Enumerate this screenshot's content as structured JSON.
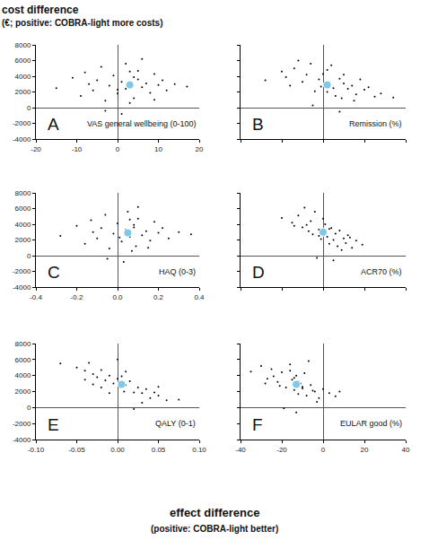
{
  "chart_data": {
    "type": "scatter",
    "ylabel": [
      "cost difference",
      "(€; positive: COBRA-light more costs)"
    ],
    "xlabel": [
      "effect difference",
      "(positive: COBRA-light better)"
    ],
    "panels": [
      {
        "title": "A",
        "xlabel": "VAS general wellbeing (0-100)",
        "xlim": [
          -20,
          20
        ],
        "xticks": [
          -20,
          -10,
          0,
          10,
          20
        ],
        "ylim": [
          -4000,
          8000
        ],
        "yticks": [
          -4000,
          -2000,
          0,
          2000,
          4000,
          6000,
          8000
        ],
        "series": [
          {
            "color": "#000000",
            "marker": "dot",
            "x": [
              -15,
              -11,
              -9,
              -8,
              -6,
              -5,
              -4,
              -3,
              -2,
              -1,
              0,
              1,
              2,
              2,
              3,
              4,
              4,
              5,
              6,
              7,
              8,
              9,
              10,
              11,
              12,
              14,
              17,
              -3,
              6,
              1,
              -7,
              9,
              3,
              0,
              5
            ],
            "values": [
              2500,
              3800,
              1500,
              4500,
              2200,
              3500,
              5200,
              900,
              2800,
              4100,
              1800,
              3300,
              5600,
              2400,
              600,
              3900,
              1200,
              4700,
              2600,
              3100,
              1900,
              4300,
              2900,
              3500,
              2200,
              3000,
              2700,
              -400,
              6200,
              -800,
              3000,
              1000,
              4600,
              2300,
              3600
            ]
          },
          {
            "color": "#7ec8e8",
            "marker": "circle",
            "x": [
              3
            ],
            "values": [
              2900
            ]
          }
        ]
      },
      {
        "title": "B",
        "xlabel": "Remission (%)",
        "tick_labels": false,
        "xlim": [
          -40,
          40
        ],
        "xticks": [
          -40,
          -20,
          0,
          20,
          40
        ],
        "ylim": [
          -4000,
          8000
        ],
        "yticks": [
          -4000,
          -2000,
          0,
          2000,
          4000,
          6000,
          8000
        ],
        "series": [
          {
            "color": "#000000",
            "marker": "dot",
            "x": [
              -28,
              -20,
              -16,
              -14,
              -10,
              -8,
              -6,
              -4,
              -2,
              0,
              2,
              3,
              4,
              5,
              6,
              8,
              9,
              10,
              12,
              14,
              16,
              18,
              20,
              22,
              25,
              28,
              34,
              -5,
              -12,
              8,
              -18,
              15,
              2,
              -1,
              10
            ],
            "values": [
              3500,
              4600,
              2800,
              5000,
              3300,
              4200,
              5600,
              2100,
              3600,
              4300,
              2000,
              3200,
              5400,
              2500,
              1500,
              3700,
              1200,
              4200,
              2400,
              2800,
              1700,
              3600,
              2300,
              2600,
              1400,
              1800,
              1300,
              300,
              6000,
              -500,
              3900,
              900,
              4800,
              2700,
              3100
            ]
          },
          {
            "color": "#7ec8e8",
            "marker": "circle",
            "x": [
              2
            ],
            "values": [
              2900
            ]
          }
        ]
      },
      {
        "title": "C",
        "xlabel": "HAQ (0-3)",
        "xlim": [
          -0.4,
          0.4
        ],
        "xticks": [
          -0.4,
          -0.2,
          {
            "value": 0,
            "label": "0.0"
          },
          0.2,
          0.4
        ],
        "ylim": [
          -4000,
          8000
        ],
        "yticks": [
          -4000,
          -2000,
          0,
          2000,
          4000,
          6000,
          8000
        ],
        "series": [
          {
            "color": "#000000",
            "marker": "dot",
            "x": [
              -0.28,
              -0.2,
              -0.16,
              -0.13,
              -0.1,
              -0.08,
              -0.06,
              -0.04,
              -0.02,
              0,
              0.02,
              0.04,
              0.05,
              0.06,
              0.07,
              0.08,
              0.09,
              0.1,
              0.12,
              0.14,
              0.16,
              0.18,
              0.2,
              0.22,
              0.25,
              0.3,
              0.36,
              -0.05,
              0.1,
              0.03,
              -0.12,
              0.15,
              0.06,
              0.01,
              0.08
            ],
            "values": [
              2500,
              3800,
              1500,
              4500,
              2200,
              3500,
              5200,
              900,
              2800,
              4100,
              1800,
              3300,
              5600,
              2400,
              600,
              3900,
              1200,
              4700,
              2600,
              3100,
              1900,
              4300,
              2900,
              3500,
              2200,
              3000,
              2700,
              -400,
              6200,
              -800,
              3000,
              1000,
              4600,
              2300,
              3600
            ]
          },
          {
            "color": "#7ec8e8",
            "marker": "circle",
            "x": [
              0.05
            ],
            "values": [
              2900
            ]
          }
        ]
      },
      {
        "title": "D",
        "xlabel": "ACR70 (%)",
        "tick_labels": false,
        "xlim": [
          -40,
          40
        ],
        "xticks": [
          -40,
          -20,
          0,
          20,
          40
        ],
        "ylim": [
          -4000,
          8000
        ],
        "yticks": [
          -4000,
          -2000,
          0,
          2000,
          4000,
          6000,
          8000
        ],
        "series": [
          {
            "color": "#000000",
            "marker": "dot",
            "x": [
              -20,
              -15,
              -12,
              -10,
              -8,
              -6,
              -5,
              -4,
              -2,
              -1,
              0,
              1,
              2,
              3,
              4,
              5,
              6,
              7,
              8,
              10,
              11,
              12,
              14,
              16,
              19,
              -3,
              -9,
              5,
              -14,
              9,
              0,
              -2,
              3,
              13,
              -7
            ],
            "values": [
              4800,
              4200,
              5100,
              3600,
              3900,
              4400,
              2700,
              5600,
              3300,
              2100,
              3000,
              4000,
              2400,
              1500,
              3500,
              2000,
              2800,
              1200,
              3200,
              2200,
              1600,
              2600,
              1000,
              1900,
              1400,
              -300,
              6100,
              -600,
              3800,
              700,
              4700,
              2500,
              3400,
              2300,
              3100
            ]
          },
          {
            "color": "#7ec8e8",
            "marker": "circle",
            "x": [
              0
            ],
            "values": [
              3000
            ]
          }
        ]
      },
      {
        "title": "E",
        "xlabel": "QALY (0-1)",
        "xlim": [
          -0.1,
          0.1
        ],
        "xticks": [
          {
            "value": -0.1,
            "label": "-0.10"
          },
          -0.05,
          {
            "value": 0,
            "label": "0.00"
          },
          0.05,
          {
            "value": 0.1,
            "label": "0.10"
          }
        ],
        "ylim": [
          -4000,
          8000
        ],
        "yticks": [
          -4000,
          -2000,
          0,
          2000,
          4000,
          6000,
          8000
        ],
        "series": [
          {
            "color": "#000000",
            "marker": "dot",
            "x": [
              -0.07,
              -0.05,
              -0.04,
              -0.035,
              -0.03,
              -0.025,
              -0.02,
              -0.015,
              -0.01,
              -0.005,
              0,
              0.003,
              0.005,
              0.008,
              0.01,
              0.015,
              0.02,
              0.025,
              0.03,
              0.035,
              0.04,
              0.045,
              0.05,
              0.06,
              0.075,
              -0.02,
              0,
              0.02,
              -0.04,
              0.03,
              0.01,
              -0.01,
              0.005,
              0.05,
              -0.03
            ],
            "values": [
              5500,
              5000,
              4600,
              5600,
              4200,
              3800,
              4700,
              3400,
              4000,
              3000,
              3600,
              2500,
              3100,
              2000,
              2800,
              3300,
              1900,
              2500,
              1800,
              2300,
              1200,
              1900,
              1500,
              900,
              1000,
              2500,
              6000,
              -200,
              3500,
              600,
              4500,
              1800,
              3900,
              2600,
              2900
            ]
          },
          {
            "color": "#7ec8e8",
            "marker": "circle",
            "x": [
              0.005
            ],
            "values": [
              2900
            ]
          }
        ]
      },
      {
        "title": "F",
        "xlabel": "EULAR good (%)",
        "tick_labels": "x",
        "xlim": [
          -40,
          40
        ],
        "xticks": [
          -40,
          -20,
          0,
          20,
          40
        ],
        "ylim": [
          -4000,
          8000
        ],
        "yticks": [
          -4000,
          -2000,
          0,
          2000,
          4000,
          6000,
          8000
        ],
        "series": [
          {
            "color": "#000000",
            "marker": "dot",
            "x": [
              -35,
              -30,
              -27,
              -25,
              -22,
              -20,
              -18,
              -16,
              -15,
              -14,
              -13,
              -12,
              -11,
              -10,
              -9,
              -8,
              -6,
              -4,
              -2,
              0,
              3,
              6,
              -19,
              -7,
              -13,
              -24,
              -3,
              -16,
              -10,
              -28,
              -12,
              -5,
              -21,
              -14,
              8
            ],
            "values": [
              4500,
              5200,
              3600,
              4800,
              3200,
              4400,
              2500,
              5400,
              3500,
              2200,
              4000,
              1700,
              3000,
              2600,
              4300,
              1500,
              2800,
              2000,
              1200,
              2300,
              1800,
              1400,
              -100,
              5800,
              -600,
              3900,
              700,
              4600,
              2400,
              3000,
              3300,
              2100,
              2700,
              3700,
              2000
            ]
          },
          {
            "color": "#7ec8e8",
            "marker": "circle",
            "x": [
              -13
            ],
            "values": [
              2900
            ]
          }
        ]
      }
    ]
  }
}
